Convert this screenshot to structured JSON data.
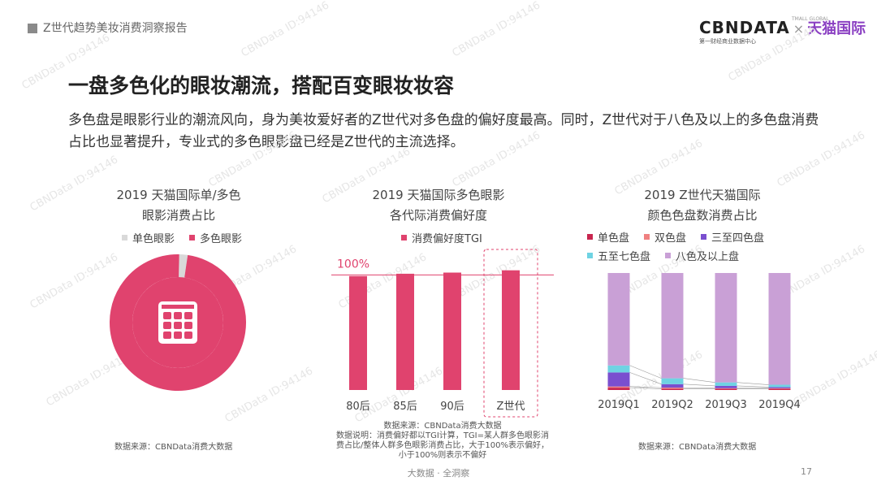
{
  "header": {
    "title": "Z世代趋势美妆消费洞察报告"
  },
  "logo": {
    "cbn": "CBNDATA",
    "x": "×",
    "tmall": "天猫国际",
    "cbn_sub": "第一财经商业数据中心",
    "tmall_sub": "TMALL GLOBAL"
  },
  "main_title": "一盘多色化的眼妆潮流，搭配百变眼妆妆容",
  "description": "多色盘是眼影行业的潮流风向，身为美妆爱好者的Z世代对多色盘的偏好度最高。同时，Z世代对于八色及以上的多色盘消费占比也显著提升，专业式的多色眼影盘已经是Z世代的主流选择。",
  "watermark": "CBNData ID:94146",
  "footer": {
    "center": "大数据 · 全洞察",
    "page": "17"
  },
  "colors": {
    "accent": "#e0436e",
    "single": "#d9d9d9"
  },
  "chart_data": [
    {
      "type": "pie",
      "title_line1": "2019 天猫国际单/多色",
      "title_line2": "眼影消费占比",
      "legend": [
        "单色眼影",
        "多色眼影"
      ],
      "values": [
        2,
        98
      ],
      "colors": [
        "#d9d9d9",
        "#e0436e"
      ],
      "icon": "palette-icon",
      "source": "数据来源：CBNData消费大数据"
    },
    {
      "type": "bar",
      "title_line1": "2019 天猫国际多色眼影",
      "title_line2": "各代际消费偏好度",
      "legend": [
        "消费偏好度TGI"
      ],
      "categories": [
        "80后",
        "85后",
        "90后",
        "Z世代"
      ],
      "values": [
        99,
        101,
        102,
        104
      ],
      "reference_value": 100,
      "reference_label": "100%",
      "highlight": "Z世代",
      "ylim": [
        0,
        120
      ],
      "source_lines": [
        "数据来源：CBNData消费大数据",
        "数据说明：消费偏好都以TGI计算，TGI=某人群多色眼影消",
        "费占比/整体人群多色眼影消费占比，大于100%表示偏好，",
        "小于100%则表示不偏好"
      ]
    },
    {
      "type": "bar",
      "stacked": true,
      "title_line1": "2019 Z世代天猫国际",
      "title_line2": "颜色色盘数消费占比",
      "categories": [
        "2019Q1",
        "2019Q2",
        "2019Q3",
        "2019Q4"
      ],
      "series": [
        {
          "name": "单色盘",
          "color": "#c8264f",
          "values": [
            2,
            1,
            1,
            1
          ]
        },
        {
          "name": "双色盘",
          "color": "#f08080",
          "values": [
            1,
            1,
            0.5,
            0.5
          ]
        },
        {
          "name": "三至四色盘",
          "color": "#7a4fcf",
          "values": [
            12,
            3,
            2,
            1
          ]
        },
        {
          "name": "五至七色盘",
          "color": "#6fd3e3",
          "values": [
            6,
            5,
            3,
            2
          ]
        },
        {
          "name": "八色及以上盘",
          "color": "#c9a0d6",
          "values": [
            79,
            90,
            93.5,
            95.5
          ]
        }
      ],
      "ylim": [
        0,
        100
      ],
      "source": "数据来源：CBNData消费大数据"
    }
  ]
}
